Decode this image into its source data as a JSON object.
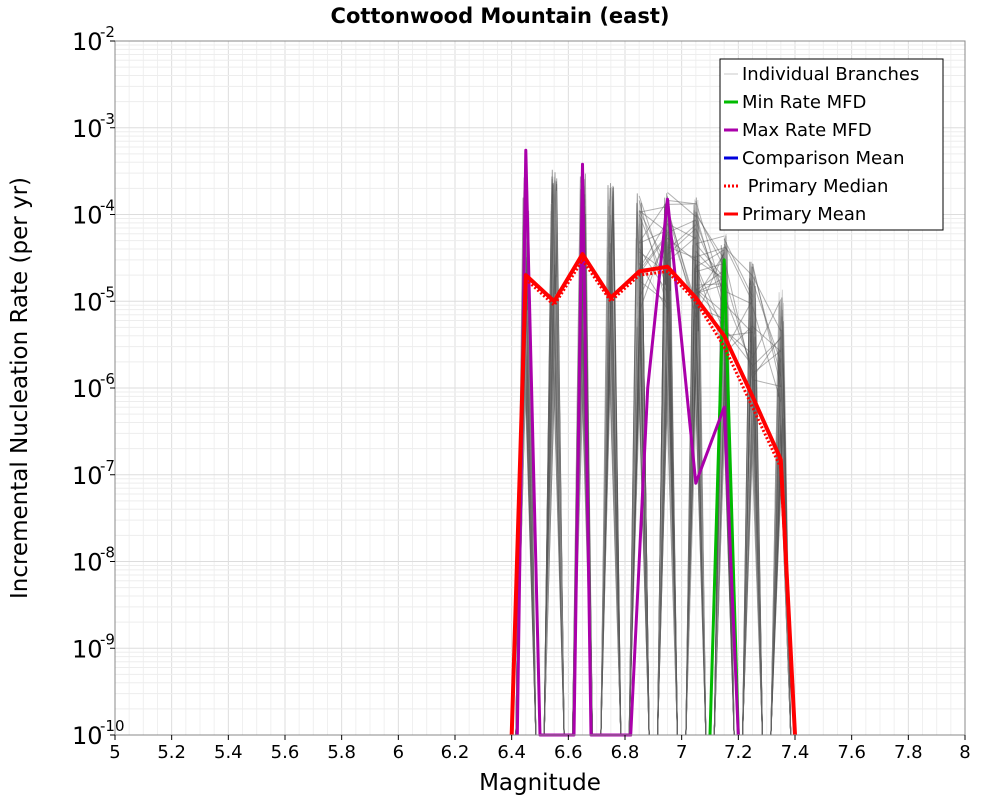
{
  "chart_data": {
    "type": "line",
    "title": "Cottonwood Mountain (east)",
    "xlabel": "Magnitude",
    "ylabel": "Incremental Nucleation Rate (per yr)",
    "xlim": [
      5,
      8
    ],
    "ylim": [
      1e-10,
      0.01
    ],
    "yscale": "log",
    "grid": true,
    "legend_position": "top-right",
    "x_ticks": [
      "5",
      "5.2",
      "5.4",
      "5.6",
      "5.8",
      "6",
      "6.2",
      "6.4",
      "6.6",
      "6.8",
      "7",
      "7.2",
      "7.4",
      "7.6",
      "7.8",
      "8"
    ],
    "y_ticks": [
      {
        "base": "10",
        "exp": "-10",
        "value": 1e-10
      },
      {
        "base": "10",
        "exp": "-9",
        "value": 1e-09
      },
      {
        "base": "10",
        "exp": "-8",
        "value": 1e-08
      },
      {
        "base": "10",
        "exp": "-7",
        "value": 1e-07
      },
      {
        "base": "10",
        "exp": "-6",
        "value": 1e-06
      },
      {
        "base": "10",
        "exp": "-5",
        "value": 1e-05
      },
      {
        "base": "10",
        "exp": "-4",
        "value": 0.0001
      },
      {
        "base": "10",
        "exp": "-3",
        "value": 0.001
      },
      {
        "base": "10",
        "exp": "-2",
        "value": 0.01
      }
    ],
    "legend": [
      {
        "label": "Individual Branches",
        "color": "#c8c8c8",
        "style": "solid"
      },
      {
        "label": "Min Rate MFD",
        "color": "#00bb00",
        "style": "solid"
      },
      {
        "label": "Max Rate MFD",
        "color": "#aa00aa",
        "style": "solid"
      },
      {
        "label": "Comparison Mean",
        "color": "#0000dd",
        "style": "solid"
      },
      {
        "label": " Primary Median",
        "color": "#ff0000",
        "style": "dotted"
      },
      {
        "label": "Primary Mean",
        "color": "#ff0000",
        "style": "solid"
      }
    ],
    "series": [
      {
        "name": "Primary Mean",
        "color": "#ff0000",
        "x": [
          6.4,
          6.45,
          6.55,
          6.65,
          6.75,
          6.85,
          6.95,
          7.05,
          7.15,
          7.25,
          7.35,
          7.4
        ],
        "y": [
          1e-10,
          2e-05,
          1e-05,
          3.5e-05,
          1.1e-05,
          2.2e-05,
          2.5e-05,
          1.1e-05,
          4e-06,
          8e-07,
          1.5e-07,
          1e-10
        ]
      },
      {
        "name": "Max Rate MFD",
        "color": "#aa00aa",
        "x": [
          6.42,
          6.45,
          6.5,
          6.62,
          6.65,
          6.68,
          6.82,
          6.88,
          6.95,
          7.05,
          7.15,
          7.2
        ],
        "y": [
          1e-10,
          0.00055,
          1e-10,
          1e-10,
          0.00038,
          1e-10,
          1e-10,
          1e-06,
          0.00015,
          8e-08,
          6e-07,
          1e-10
        ]
      },
      {
        "name": "Min Rate MFD",
        "color": "#00bb00",
        "x": [
          7.1,
          7.15,
          7.2
        ],
        "y": [
          1e-10,
          3e-05,
          1e-10
        ]
      },
      {
        "name": "Primary Median",
        "color": "#ff0000",
        "x": [
          6.4,
          6.45,
          6.55,
          6.65,
          6.75,
          6.85,
          6.95,
          7.05,
          7.15,
          7.25,
          7.35,
          7.4
        ],
        "y": [
          1e-10,
          1.8e-05,
          9e-06,
          3e-05,
          1e-05,
          2e-05,
          2.2e-05,
          1e-05,
          3e-06,
          6e-07,
          1.2e-07,
          1e-10
        ]
      }
    ],
    "individual_branches": {
      "color": "#555555",
      "spikes": [
        {
          "x": 6.45,
          "y_max": 0.0003
        },
        {
          "x": 6.55,
          "y_max": 0.00035
        },
        {
          "x": 6.65,
          "y_max": 0.0003
        },
        {
          "x": 6.75,
          "y_max": 0.00023
        },
        {
          "x": 6.85,
          "y_max": 0.00018
        },
        {
          "x": 6.95,
          "y_max": 0.00018
        },
        {
          "x": 7.05,
          "y_max": 0.00016
        },
        {
          "x": 7.15,
          "y_max": 6e-05
        },
        {
          "x": 7.25,
          "y_max": 3e-05
        },
        {
          "x": 7.35,
          "y_max": 1.4e-05
        }
      ]
    }
  }
}
